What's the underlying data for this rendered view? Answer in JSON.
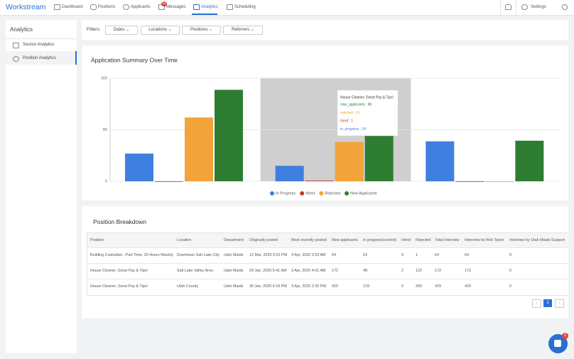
{
  "nav": {
    "logo": "Workstream",
    "items": [
      "Dashboard",
      "Positions",
      "Applicants",
      "Messages",
      "Analytics",
      "Scheduling"
    ],
    "messages_badge": "10",
    "settings": "Settings"
  },
  "sidebar": {
    "title": "Analytics",
    "items": [
      "Source Analytics",
      "Position Analytics"
    ]
  },
  "filters": {
    "label": "Filters:",
    "buttons": [
      "Dates",
      "Locations",
      "Positions",
      "Referrers"
    ]
  },
  "chart_data": {
    "type": "bar",
    "title": "Application Summary Over Time",
    "categories": [
      null,
      null,
      null
    ],
    "series": [
      {
        "name": "In Progress",
        "color": "#3f7fe0",
        "values": [
          43,
          24,
          62
        ]
      },
      {
        "name": "Hired",
        "color": "#c0392b",
        "values": [
          0,
          1,
          0
        ]
      },
      {
        "name": "Rejected",
        "color": "#f2a33a",
        "values": [
          99,
          61,
          0
        ]
      },
      {
        "name": "New Applicants",
        "color": "#2e7d32",
        "values": [
          142,
          86,
          63
        ]
      }
    ],
    "ylim": [
      0,
      160
    ],
    "yticks": [
      0,
      80,
      160
    ],
    "grid": true,
    "legend": "bottom",
    "tooltip": {
      "title": "House Cleaner, Great Pay & Tips!",
      "lines": [
        "new_applicants : 86",
        "rejected : 61",
        "hired : 1",
        "in_progress : 24"
      ]
    }
  },
  "table": {
    "title": "Position Breakdown",
    "header": [
      "Position",
      "Location",
      "Department",
      "Originally posted",
      "Most recently posted",
      "New applicants",
      "In progress(current)",
      "Hired",
      "Rejected",
      "Total Interview",
      "Interview by Rob Taylor",
      "Interview by Utah Maids Support"
    ],
    "rows": [
      [
        "Building Custodian - Part Time, 20 Hours Weekly",
        "Downtown Salt Lake City",
        "Utah Maids",
        "12 Mar, 2020 9:20 PM",
        "3 Apr, 2020 3:53 AM",
        64,
        63,
        0,
        1,
        64,
        64,
        0
      ],
      [
        "House Cleaner, Great Pay & Tips!",
        "Salt Lake Valley Area",
        "Utah Maids",
        "29 Jan, 2020 5:41 AM",
        "3 Apr, 2020 4:01 AM",
        172,
        48,
        2,
        122,
        172,
        172,
        0
      ],
      [
        "House Cleaner, Great Pay & Tips!",
        "Utah County",
        "Utah Maids",
        "30 Jan, 2020 4:18 PM",
        "3 Apr, 2020 2:30 PM",
        429,
        129,
        0,
        300,
        429,
        429,
        0
      ]
    ]
  },
  "pagination": {
    "prev": "‹",
    "page": "1",
    "next": "›"
  },
  "chat_badge": "1"
}
